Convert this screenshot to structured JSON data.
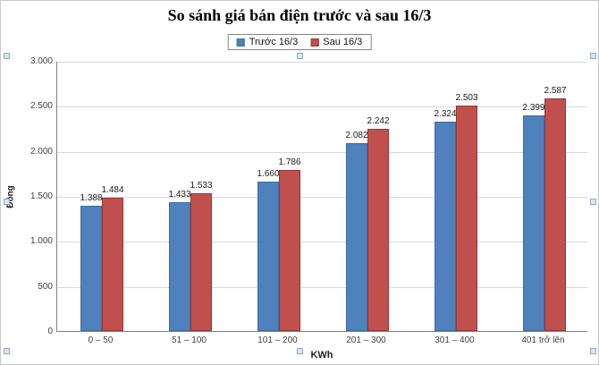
{
  "chart_data": {
    "type": "bar",
    "title": "So sánh giá bán điện trước và sau 16/3",
    "categories": [
      "0 – 50",
      "51 – 100",
      "101 – 200",
      "201 – 300",
      "301 – 400",
      "401 trở lên"
    ],
    "series": [
      {
        "name": "Trước 16/3",
        "color": "#4f81bd",
        "border": "#3c6ea5",
        "values": [
          1388,
          1433,
          1660,
          2082,
          2324,
          2399
        ]
      },
      {
        "name": "Sau 16/3",
        "color": "#c0504d",
        "border": "#953734",
        "values": [
          1484,
          1533,
          1786,
          2242,
          2503,
          2587
        ]
      }
    ],
    "xlabel": "KWh",
    "ylabel": "Đồng",
    "ylim": [
      0,
      3000
    ],
    "ytick_step": 500,
    "grid": true,
    "legend_position": "top",
    "data_labels": true,
    "number_format": "thousands-dot",
    "background": "#ffffff"
  }
}
